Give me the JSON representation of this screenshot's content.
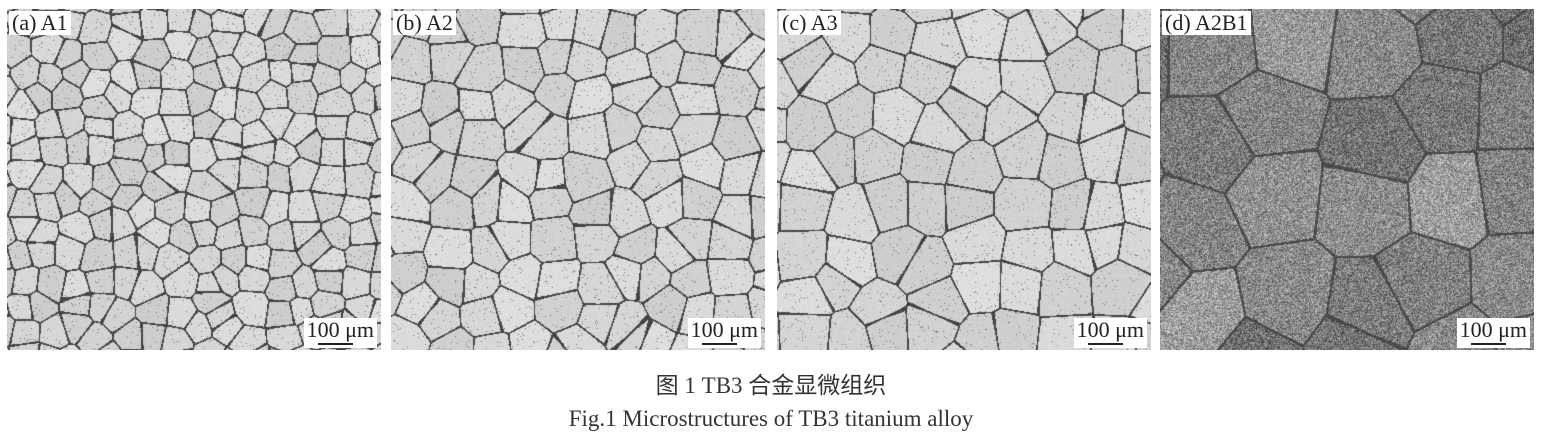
{
  "figure": {
    "panels": [
      {
        "label": "(a) A1",
        "scale_bar": "100 μm",
        "texture": "fine-grains"
      },
      {
        "label": "(b) A2",
        "scale_bar": "100 μm",
        "texture": "medium-grains"
      },
      {
        "label": "(c) A3",
        "scale_bar": "100 μm",
        "texture": "coarse-grains"
      },
      {
        "label": "(d) A2B1",
        "scale_bar": "100 μm",
        "texture": "dark-etched"
      }
    ],
    "caption_cn": "图 1  TB3 合金显微组织",
    "caption_en": "Fig.1  Microstructures of TB3 titanium alloy"
  }
}
